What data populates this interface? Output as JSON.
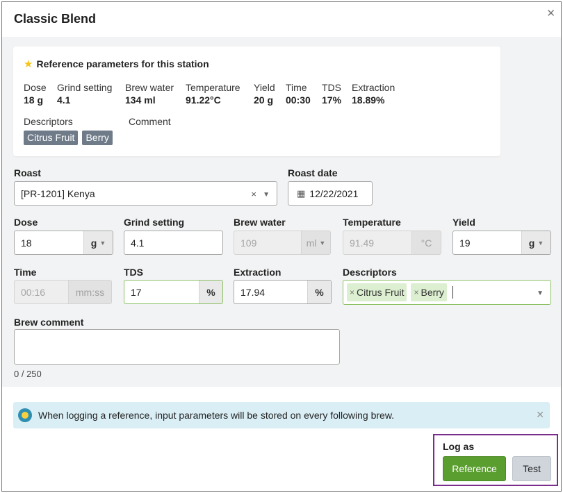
{
  "header": {
    "title": "Classic Blend",
    "close_icon": "close-icon"
  },
  "reference": {
    "title": "Reference parameters for this station",
    "params": [
      {
        "label": "Dose",
        "value": "18 g"
      },
      {
        "label": "Grind setting",
        "value": "4.1"
      },
      {
        "label": "Brew water",
        "value": "134 ml"
      },
      {
        "label": "Temperature",
        "value": "91.22°C"
      },
      {
        "label": "Yield",
        "value": "20 g"
      },
      {
        "label": "Time",
        "value": "00:30"
      },
      {
        "label": "TDS",
        "value": "17%"
      },
      {
        "label": "Extraction",
        "value": "18.89%"
      }
    ],
    "descriptors_label": "Descriptors",
    "comment_label": "Comment",
    "descriptors": [
      "Citrus Fruit",
      "Berry"
    ]
  },
  "form": {
    "roast": {
      "label": "Roast",
      "value": "[PR-1201] Kenya",
      "clear": "×"
    },
    "roast_date": {
      "label": "Roast date",
      "value": "12/22/2021"
    },
    "dose": {
      "label": "Dose",
      "value": "18",
      "unit": "g"
    },
    "grind": {
      "label": "Grind setting",
      "value": "4.1"
    },
    "brew_water": {
      "label": "Brew water",
      "value": "109",
      "unit": "ml"
    },
    "temperature": {
      "label": "Temperature",
      "value": "91.49",
      "unit": "°C"
    },
    "yield": {
      "label": "Yield",
      "value": "19",
      "unit": "g"
    },
    "time": {
      "label": "Time",
      "value": "00:16",
      "unit": "mm:ss"
    },
    "tds": {
      "label": "TDS",
      "value": "17",
      "unit": "%"
    },
    "extraction": {
      "label": "Extraction",
      "value": "17.94",
      "unit": "%"
    },
    "descriptors": {
      "label": "Descriptors",
      "tags": [
        "Citrus Fruit",
        "Berry"
      ]
    },
    "brew_comment": {
      "label": "Brew comment",
      "value": "",
      "counter": "0 / 250"
    }
  },
  "alert": {
    "text": "When logging a reference, input parameters will be stored on every following brew."
  },
  "log_as": {
    "label": "Log as",
    "reference_button": "Reference",
    "test_button": "Test"
  },
  "colors": {
    "accent_green": "#5a9e2f",
    "highlight_border": "#7b2d8e",
    "chip_gray": "#6f7b89",
    "tag_green": "#dcefd0",
    "alert_bg": "#d9eef5"
  }
}
